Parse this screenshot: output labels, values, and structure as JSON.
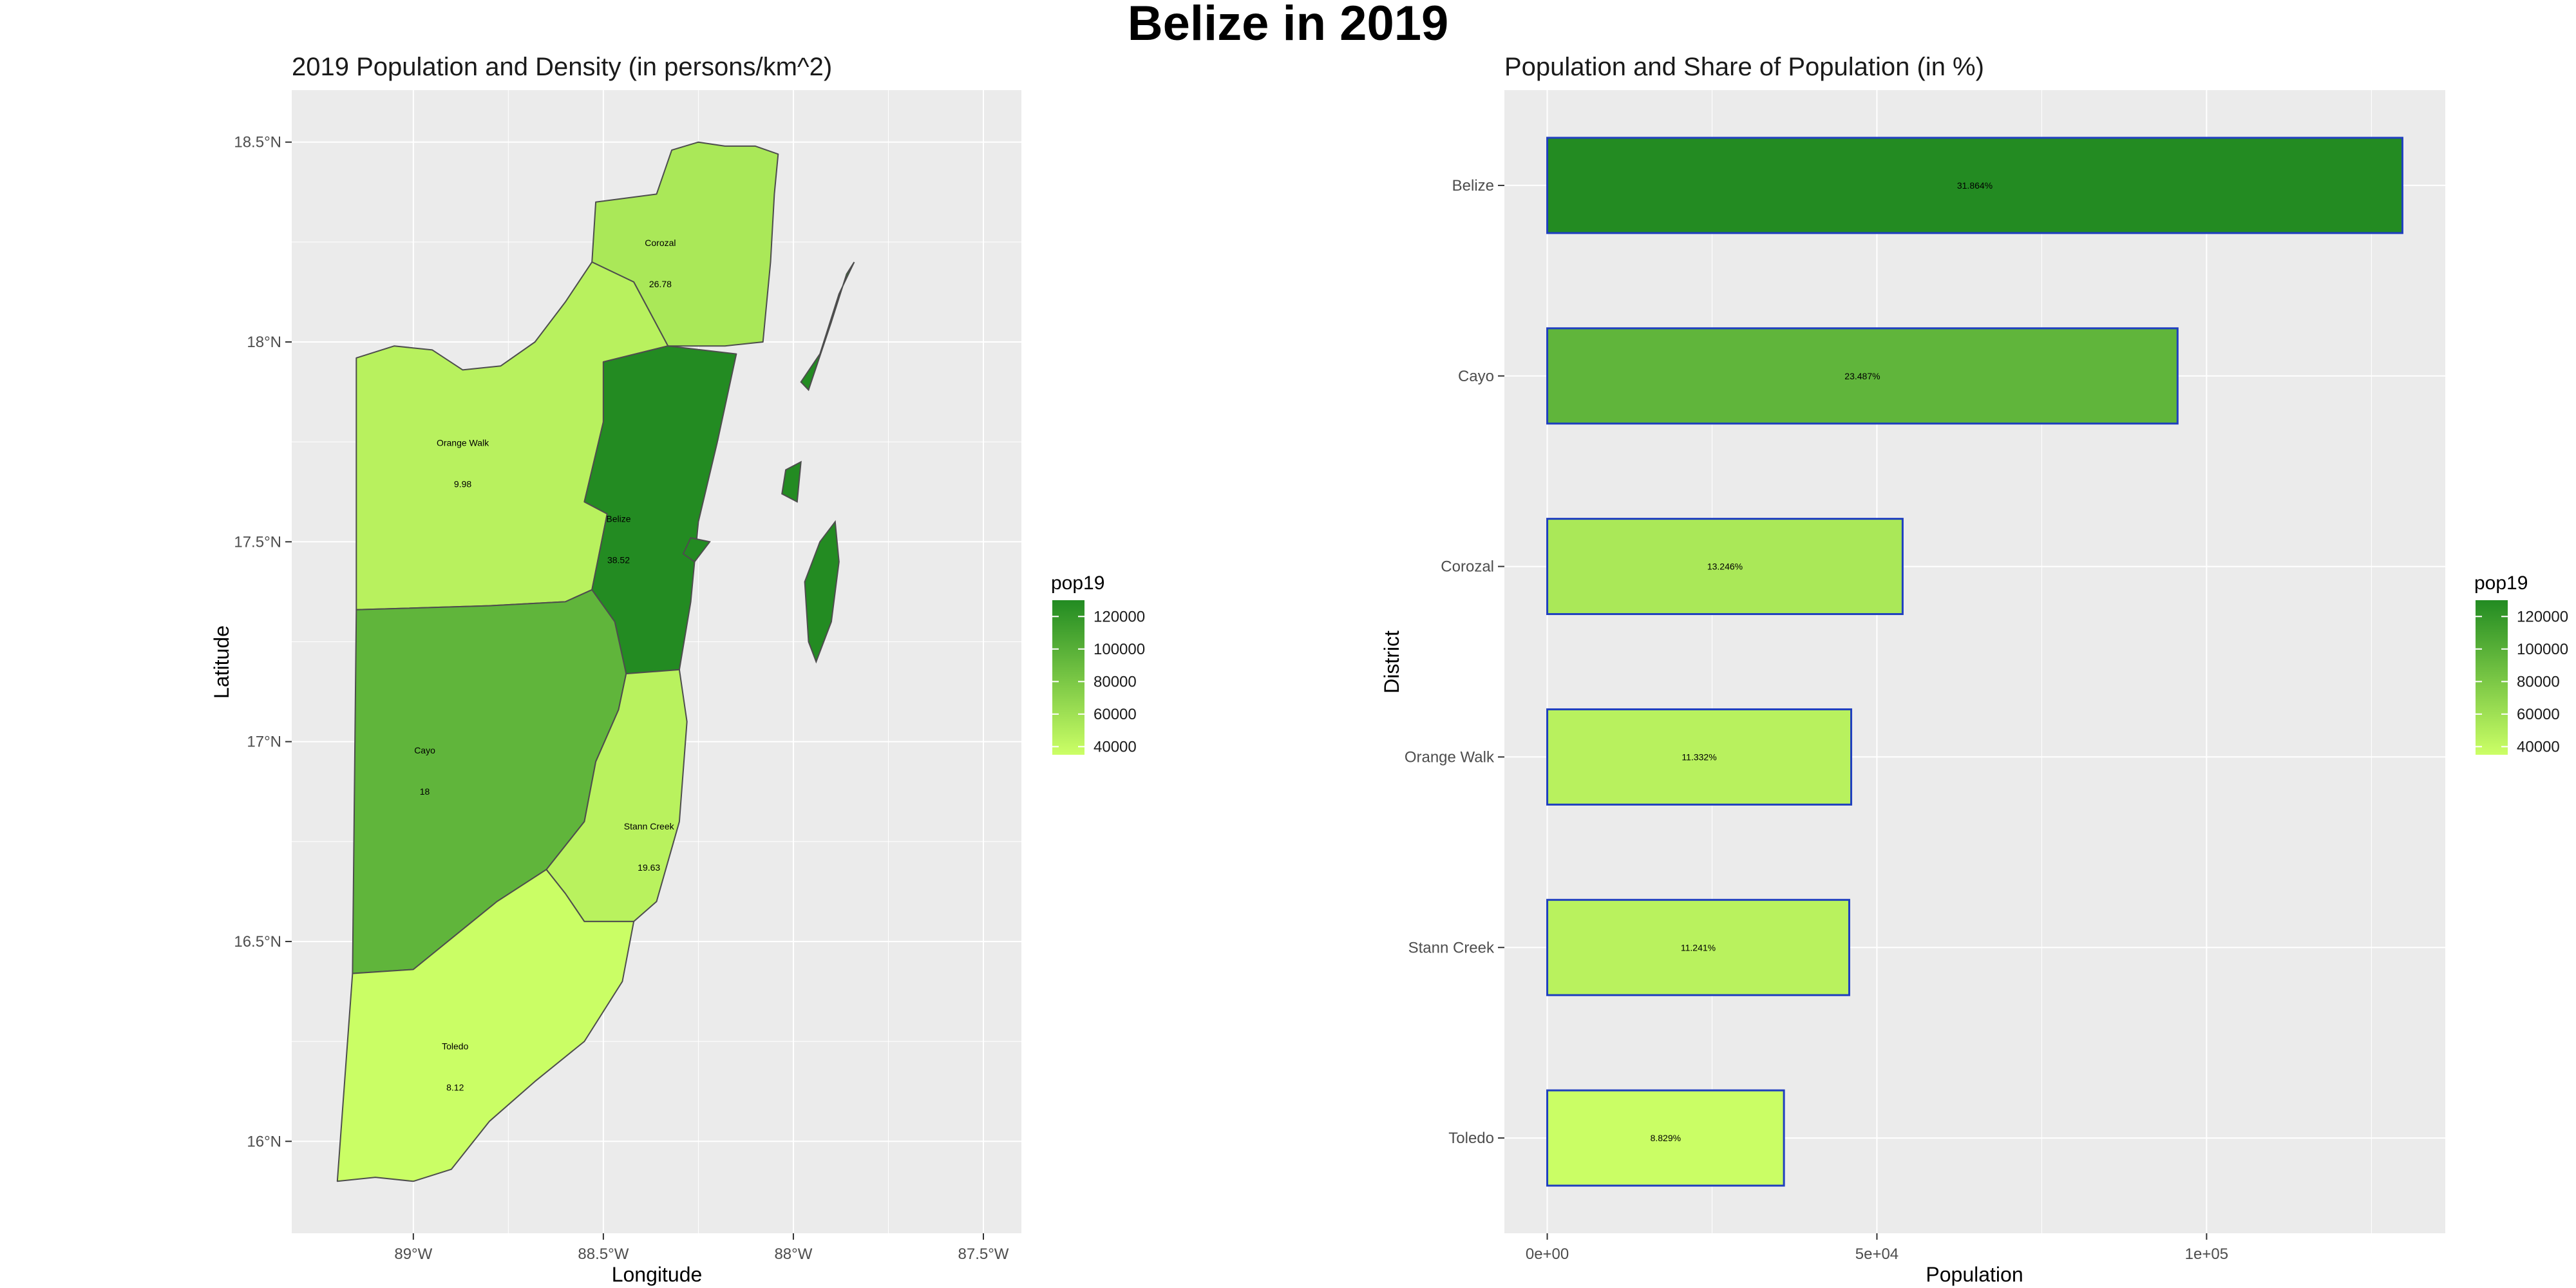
{
  "title": "Belize in 2019",
  "colors": {
    "panel_bg": "#ebebeb",
    "grid": "#ffffff",
    "map_border": "#4d4d4d",
    "bar_border": "#1f3fbf",
    "low": "#ccff66",
    "high": "#228b22"
  },
  "chart_data": [
    {
      "type": "choropleth-map",
      "title": "2019 Population and Density (in persons/km^2)",
      "xlabel": "Longitude",
      "ylabel": "Latitude",
      "x_ticks": [
        -89.0,
        -88.5,
        -88.0,
        -87.5
      ],
      "x_tick_labels": [
        "89°W",
        "88.5°W",
        "88°W",
        "87.5°W"
      ],
      "y_ticks": [
        16.0,
        16.5,
        17.0,
        17.5,
        18.0,
        18.5
      ],
      "y_tick_labels": [
        "16°N",
        "16.5°N",
        "17°N",
        "17.5°N",
        "18°N",
        "18.5°N"
      ],
      "xlim": [
        -89.32,
        -87.4
      ],
      "ylim": [
        15.77,
        18.63
      ],
      "grid": true,
      "legend": {
        "title": "pop19",
        "position": "right",
        "min": 35000,
        "max": 130000,
        "ticks": [
          40000,
          60000,
          80000,
          100000,
          120000
        ],
        "tick_labels": [
          "40000",
          "60000",
          "80000",
          "100000",
          "120000"
        ]
      },
      "regions": [
        {
          "name": "Corozal",
          "value": "26.78",
          "pop": 53900,
          "label_lon": -88.35,
          "label_lat": 18.24,
          "outline": [
            [
              -88.1,
              18.49
            ],
            [
              -88.04,
              18.47
            ],
            [
              -88.05,
              18.37
            ],
            [
              -88.06,
              18.2
            ],
            [
              -88.08,
              18.0
            ],
            [
              -88.18,
              17.99
            ],
            [
              -88.33,
              17.99
            ],
            [
              -88.42,
              18.15
            ],
            [
              -88.53,
              18.2
            ],
            [
              -88.52,
              18.35
            ],
            [
              -88.36,
              18.37
            ],
            [
              -88.32,
              18.48
            ],
            [
              -88.25,
              18.5
            ],
            [
              -88.18,
              18.49
            ]
          ]
        },
        {
          "name": "Orange Walk",
          "value": "9.98",
          "pop": 46100,
          "label_lon": -88.87,
          "label_lat": 17.74,
          "outline": [
            [
              -89.15,
              17.96
            ],
            [
              -89.05,
              17.99
            ],
            [
              -88.95,
              17.98
            ],
            [
              -88.87,
              17.93
            ],
            [
              -88.77,
              17.94
            ],
            [
              -88.68,
              18.0
            ],
            [
              -88.6,
              18.1
            ],
            [
              -88.53,
              18.2
            ],
            [
              -88.42,
              18.15
            ],
            [
              -88.33,
              17.99
            ],
            [
              -88.5,
              17.95
            ],
            [
              -88.5,
              17.8
            ],
            [
              -88.55,
              17.6
            ],
            [
              -88.49,
              17.57
            ],
            [
              -88.53,
              17.38
            ],
            [
              -88.6,
              17.35
            ],
            [
              -88.8,
              17.34
            ],
            [
              -89.15,
              17.33
            ]
          ]
        },
        {
          "name": "Belize",
          "value": "38.52",
          "pop": 129700,
          "label_lon": -88.46,
          "label_lat": 17.55,
          "outline": [
            [
              -88.5,
              17.95
            ],
            [
              -88.33,
              17.99
            ],
            [
              -88.15,
              17.97
            ],
            [
              -88.2,
              17.75
            ],
            [
              -88.25,
              17.55
            ],
            [
              -88.27,
              17.35
            ],
            [
              -88.3,
              17.18
            ],
            [
              -88.44,
              17.17
            ],
            [
              -88.47,
              17.3
            ],
            [
              -88.53,
              17.38
            ],
            [
              -88.49,
              17.57
            ],
            [
              -88.55,
              17.6
            ],
            [
              -88.5,
              17.8
            ]
          ]
        },
        {
          "name": "Cayo",
          "value": "18",
          "pop": 95600,
          "label_lon": -88.97,
          "label_lat": 16.97,
          "outline": [
            [
              -89.15,
              17.33
            ],
            [
              -88.8,
              17.34
            ],
            [
              -88.6,
              17.35
            ],
            [
              -88.53,
              17.38
            ],
            [
              -88.47,
              17.3
            ],
            [
              -88.44,
              17.17
            ],
            [
              -88.46,
              17.08
            ],
            [
              -88.52,
              16.95
            ],
            [
              -88.55,
              16.8
            ],
            [
              -88.65,
              16.68
            ],
            [
              -88.78,
              16.6
            ],
            [
              -89.0,
              16.43
            ],
            [
              -89.16,
              16.42
            ]
          ]
        },
        {
          "name": "Stann Creek",
          "value": "19.63",
          "pop": 45800,
          "label_lon": -88.38,
          "label_lat": 16.78,
          "outline": [
            [
              -88.44,
              17.17
            ],
            [
              -88.3,
              17.18
            ],
            [
              -88.28,
              17.05
            ],
            [
              -88.3,
              16.8
            ],
            [
              -88.36,
              16.6
            ],
            [
              -88.42,
              16.55
            ],
            [
              -88.55,
              16.55
            ],
            [
              -88.6,
              16.62
            ],
            [
              -88.65,
              16.68
            ],
            [
              -88.55,
              16.8
            ],
            [
              -88.52,
              16.95
            ],
            [
              -88.46,
              17.08
            ]
          ]
        },
        {
          "name": "Toledo",
          "value": "8.12",
          "pop": 35900,
          "label_lon": -88.89,
          "label_lat": 16.23,
          "outline": [
            [
              -89.16,
              16.42
            ],
            [
              -89.0,
              16.43
            ],
            [
              -88.78,
              16.6
            ],
            [
              -88.65,
              16.68
            ],
            [
              -88.6,
              16.62
            ],
            [
              -88.55,
              16.55
            ],
            [
              -88.42,
              16.55
            ],
            [
              -88.45,
              16.4
            ],
            [
              -88.55,
              16.25
            ],
            [
              -88.68,
              16.15
            ],
            [
              -88.8,
              16.05
            ],
            [
              -88.9,
              15.93
            ],
            [
              -89.0,
              15.9
            ],
            [
              -89.1,
              15.91
            ],
            [
              -89.2,
              15.9
            ]
          ]
        }
      ],
      "islands": [
        {
          "pop": 129700,
          "outline": [
            [
              -87.9,
              18.05
            ],
            [
              -87.86,
              18.17
            ],
            [
              -87.84,
              18.2
            ],
            [
              -87.88,
              18.12
            ],
            [
              -87.93,
              17.97
            ],
            [
              -87.98,
              17.9
            ],
            [
              -87.96,
              17.88
            ]
          ]
        },
        {
          "pop": 129700,
          "outline": [
            [
              -87.93,
              17.5
            ],
            [
              -87.89,
              17.55
            ],
            [
              -87.88,
              17.45
            ],
            [
              -87.9,
              17.3
            ],
            [
              -87.94,
              17.2
            ],
            [
              -87.96,
              17.25
            ],
            [
              -87.97,
              17.4
            ]
          ]
        },
        {
          "pop": 129700,
          "outline": [
            [
              -88.02,
              17.68
            ],
            [
              -87.98,
              17.7
            ],
            [
              -87.99,
              17.6
            ],
            [
              -88.03,
              17.62
            ]
          ]
        },
        {
          "pop": 129700,
          "outline": [
            [
              -88.27,
              17.51
            ],
            [
              -88.22,
              17.5
            ],
            [
              -88.26,
              17.45
            ],
            [
              -88.29,
              17.47
            ]
          ]
        }
      ],
      "bar_labels": []
    },
    {
      "type": "bar",
      "orientation": "horizontal",
      "title": "Population and Share of Population (in %)",
      "xlabel": "Population",
      "ylabel": "District",
      "categories": [
        "Belize",
        "Cayo",
        "Corozal",
        "Orange Walk",
        "Stann Creek",
        "Toledo"
      ],
      "values": [
        129700,
        95600,
        53900,
        46100,
        45800,
        35900
      ],
      "bar_labels": [
        "31.864%",
        "23.487%",
        "13.246%",
        "11.332%",
        "11.241%",
        "8.829%"
      ],
      "x_ticks": [
        0,
        50000,
        100000
      ],
      "x_tick_labels": [
        "0e+00",
        "5e+04",
        "1e+05"
      ],
      "xlim": [
        -6500,
        136200
      ],
      "grid": true,
      "legend": {
        "title": "pop19",
        "position": "right",
        "min": 35000,
        "max": 130000,
        "ticks": [
          40000,
          60000,
          80000,
          100000,
          120000
        ],
        "tick_labels": [
          "40000",
          "60000",
          "80000",
          "100000",
          "120000"
        ]
      }
    }
  ]
}
